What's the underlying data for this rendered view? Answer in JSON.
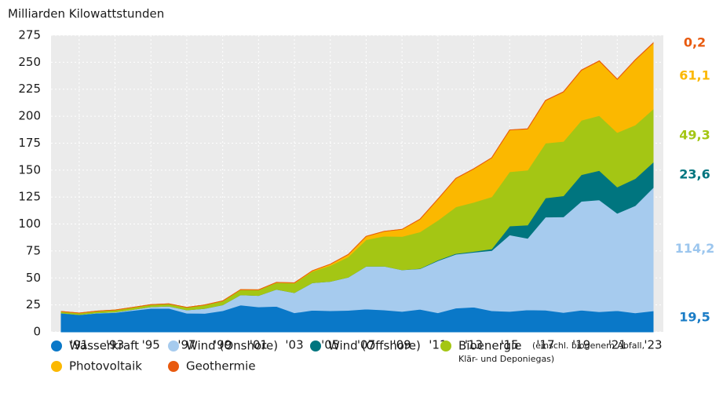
{
  "chart_data": {
    "type": "stacked_area",
    "y_axis_label": "Milliarden Kilowattstunden",
    "x": [
      1990,
      1991,
      1992,
      1993,
      1994,
      1995,
      1996,
      1997,
      1998,
      1999,
      2000,
      2001,
      2002,
      2003,
      2004,
      2005,
      2006,
      2007,
      2008,
      2009,
      2010,
      2011,
      2012,
      2013,
      2014,
      2015,
      2016,
      2017,
      2018,
      2019,
      2020,
      2021,
      2022,
      2023
    ],
    "xlim": [
      1990,
      2023
    ],
    "xticks": [
      {
        "value": 1991,
        "label": "'91"
      },
      {
        "value": 1993,
        "label": "'93"
      },
      {
        "value": 1995,
        "label": "'95"
      },
      {
        "value": 1997,
        "label": "'97"
      },
      {
        "value": 1999,
        "label": "'99"
      },
      {
        "value": 2001,
        "label": "'01"
      },
      {
        "value": 2003,
        "label": "'03"
      },
      {
        "value": 2005,
        "label": "'05"
      },
      {
        "value": 2007,
        "label": "'07"
      },
      {
        "value": 2009,
        "label": "'09"
      },
      {
        "value": 2011,
        "label": "'11"
      },
      {
        "value": 2013,
        "label": "'13"
      },
      {
        "value": 2015,
        "label": "'15"
      },
      {
        "value": 2017,
        "label": "'17"
      },
      {
        "value": 2019,
        "label": "'19"
      },
      {
        "value": 2021,
        "label": "'21"
      },
      {
        "value": 2023,
        "label": "'23"
      }
    ],
    "ylim": [
      0,
      275
    ],
    "yticks": [
      0,
      25,
      50,
      75,
      100,
      125,
      150,
      175,
      200,
      225,
      250,
      275
    ],
    "grid": true,
    "series": [
      {
        "name": "Wasserkraft",
        "color": "#0a78c8",
        "label_color": "#1a7cc6",
        "end_label": "19,5",
        "values": [
          17.4,
          15.9,
          17.4,
          17.9,
          19.9,
          21.8,
          21.9,
          17.4,
          17.2,
          19.6,
          24.9,
          23.2,
          23.7,
          17.7,
          20.1,
          19.6,
          20.0,
          21.2,
          20.4,
          19.0,
          21.0,
          17.7,
          22.1,
          23.0,
          19.6,
          19.0,
          20.5,
          20.2,
          18.0,
          20.2,
          18.7,
          19.7,
          17.6,
          19.5
        ]
      },
      {
        "name": "Wind (Onshore)",
        "color": "#a6cbee",
        "label_color": "#9cc6ee",
        "end_label": "114,2",
        "values": [
          0.1,
          0.1,
          0.3,
          0.6,
          0.9,
          1.5,
          2.0,
          3.0,
          4.5,
          5.5,
          9.5,
          10.5,
          15.8,
          18.7,
          25.5,
          27.2,
          30.7,
          39.7,
          40.6,
          38.6,
          37.6,
          48.3,
          49.9,
          50.8,
          55.9,
          70.9,
          66.3,
          86.3,
          88.7,
          100.9,
          103.7,
          90.3,
          99.5,
          114.2
        ]
      },
      {
        "name": "Wind (Offshore)",
        "color": "#00757f",
        "label_color": "#00757f",
        "end_label": "23,6",
        "values": [
          0,
          0,
          0,
          0,
          0,
          0,
          0,
          0,
          0,
          0,
          0,
          0,
          0,
          0,
          0,
          0,
          0,
          0,
          0,
          0,
          0.2,
          0.6,
          0.7,
          0.9,
          1.5,
          8.3,
          12.3,
          17.7,
          19.5,
          24.7,
          27.3,
          24.4,
          25.1,
          23.6
        ]
      },
      {
        "name": "Bioenergie",
        "color": "#a4c614",
        "label_color": "#a4c614",
        "end_label": "49,3",
        "legend_note": [
          "(einschl. biogenem Abfall,",
          "Klär- und Deponiegas)"
        ],
        "values": [
          1.4,
          1.5,
          1.6,
          1.8,
          1.9,
          2.0,
          2.1,
          2.3,
          3.3,
          3.6,
          4.7,
          5.2,
          6.2,
          8.8,
          10.5,
          14.7,
          18.9,
          24.6,
          27.8,
          30.9,
          33.9,
          36.9,
          43.2,
          45.5,
          48.3,
          50.3,
          50.9,
          50.9,
          50.5,
          50.4,
          50.9,
          50.5,
          49.6,
          49.3
        ]
      },
      {
        "name": "Photovoltaik",
        "color": "#fbb800",
        "label_color": "#fbb800",
        "end_label": "61,1",
        "values": [
          0,
          0,
          0,
          0,
          0,
          0,
          0,
          0,
          0,
          0,
          0.1,
          0.1,
          0.2,
          0.3,
          0.6,
          1.3,
          2.2,
          3.1,
          4.4,
          6.6,
          11.7,
          19.6,
          26.4,
          31.0,
          36.1,
          38.7,
          38.1,
          39.4,
          45.8,
          46.4,
          50.6,
          49.3,
          60.3,
          61.1
        ]
      },
      {
        "name": "Geothermie",
        "color": "#e85a0f",
        "label_color": "#e85a0f",
        "end_label": "0,2",
        "values": [
          0,
          0,
          0,
          0,
          0,
          0,
          0,
          0,
          0,
          0,
          0,
          0,
          0,
          0,
          0,
          0,
          0,
          0,
          0,
          0,
          0.1,
          0.1,
          0.1,
          0.1,
          0.1,
          0.1,
          0.2,
          0.2,
          0.2,
          0.2,
          0.2,
          0.2,
          0.2,
          0.2
        ]
      }
    ]
  }
}
